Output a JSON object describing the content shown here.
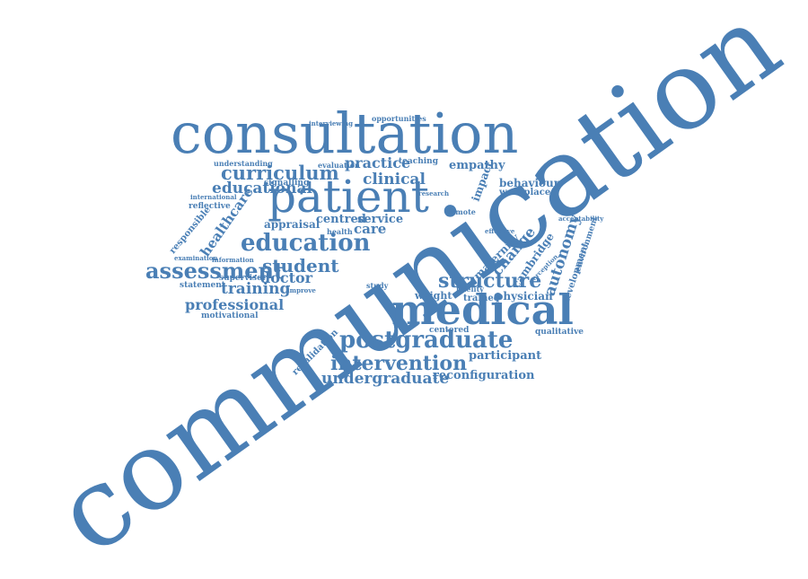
{
  "colors": {
    "primary": "#4a7fb5",
    "background": "#ffffff"
  },
  "words": {
    "communication": "communication",
    "consultation": "consultation",
    "patient": "patient",
    "medical": "medical",
    "education": "education",
    "postgraduate": "postgraduate",
    "assessment": "assessment",
    "intervention": "intervention",
    "curriculum": "curriculum",
    "structure": "structure",
    "student": "student",
    "undergraduate": "undergraduate",
    "educational": "educational",
    "clinical": "clinical",
    "practice": "practice",
    "training": "training",
    "professional": "professional",
    "doctor": "doctor",
    "care": "care",
    "service": "service",
    "centred": "centred",
    "appraisal": "appraisal",
    "healthcare": "healthcare",
    "autonomy": "autonomy",
    "change": "change",
    "cambridge": "cambridge",
    "maternity": "maternity",
    "empathy": "empathy",
    "impact": "impact",
    "behaviour": "behaviour",
    "workplace": "workplace",
    "reconfiguration": "reconfiguration",
    "participant": "participant",
    "physician": "physician",
    "weight": "weight",
    "trainee": "trainee",
    "fidelity": "fidelity",
    "centered": "centered",
    "qualitative": "qualitative",
    "development": "development",
    "environment": "environment",
    "acceptability": "acceptability",
    "revalidation": "revalidation",
    "motivational": "motivational",
    "statement": "statement",
    "supervisor": "supervisor",
    "responsible": "responsible",
    "reflective": "reflective",
    "international": "international",
    "signalling": "signalling",
    "understanding": "understanding",
    "evaluation": "evaluation",
    "teaching": "teaching",
    "opportunities": "opportunities",
    "interviewing": "interviewing",
    "examination": "examination",
    "information": "information",
    "improve": "improve",
    "remote": "remote",
    "health": "health",
    "study": "study",
    "effective": "effective",
    "perception": "perception",
    "research": "research"
  }
}
